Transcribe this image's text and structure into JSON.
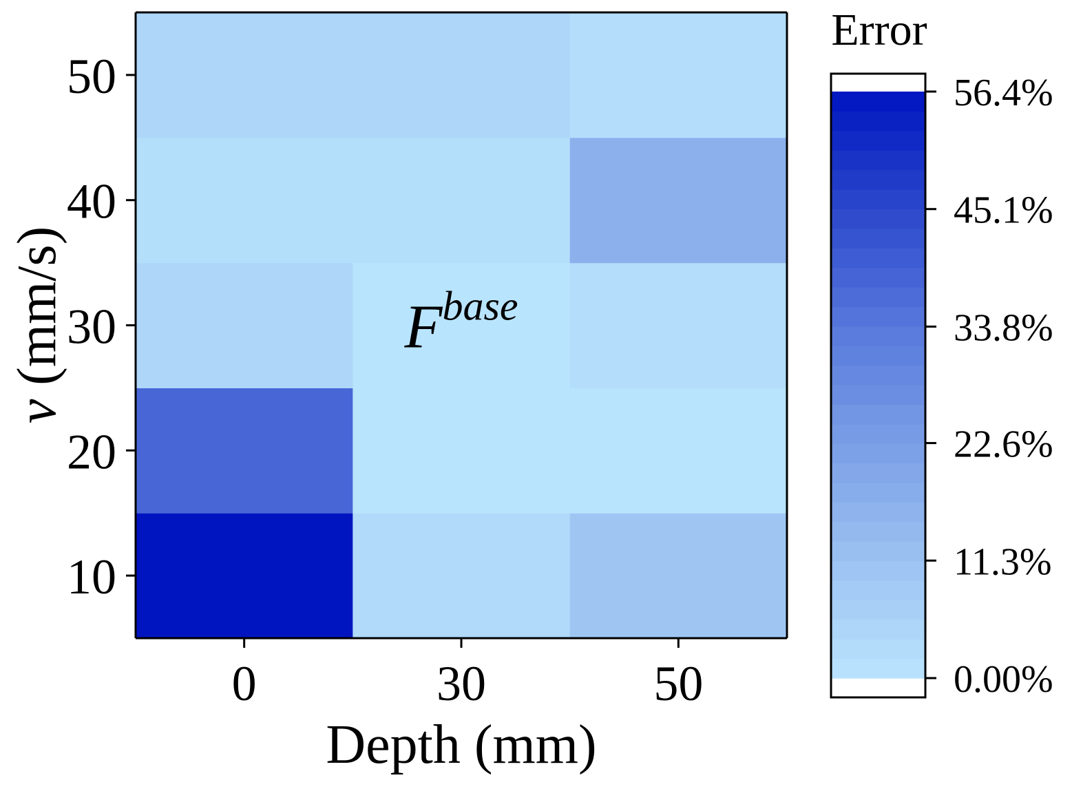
{
  "chart_data": {
    "type": "heatmap",
    "xlabel": "Depth (mm)",
    "ylabel_symbol": "v",
    "ylabel_unit": " (mm/s)",
    "x_categories": [
      "0",
      "30",
      "50"
    ],
    "y_categories": [
      "10",
      "20",
      "30",
      "40",
      "50"
    ],
    "values": [
      [
        56.4,
        3.5,
        10.0
      ],
      [
        38.0,
        0.0,
        0.0
      ],
      [
        4.5,
        0.0,
        2.2
      ],
      [
        1.8,
        1.8,
        17.0
      ],
      [
        4.5,
        4.5,
        2.2
      ]
    ],
    "value_unit": "%",
    "annotation": {
      "x_category": "30",
      "y_category": "30",
      "base": "F",
      "superscript": "base"
    },
    "colorbar": {
      "title": "Error",
      "ticks": [
        "0.00%",
        "11.3%",
        "22.6%",
        "33.8%",
        "45.1%",
        "56.4%"
      ],
      "tick_values": [
        0,
        11.3,
        22.6,
        33.8,
        45.1,
        56.4
      ],
      "range": [
        0,
        56.4
      ],
      "low_color": "#b9e4fd",
      "high_color": "#0015c0"
    },
    "grid": false
  }
}
